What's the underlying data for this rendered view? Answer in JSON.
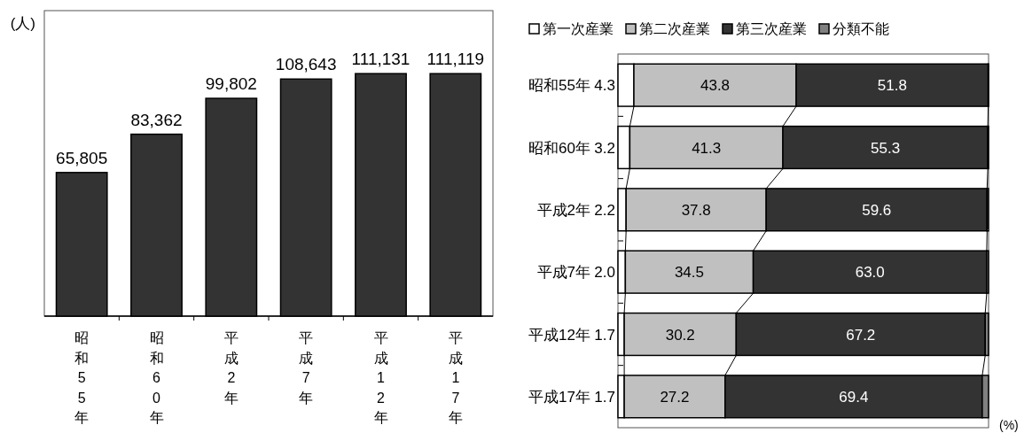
{
  "chart_data": [
    {
      "type": "bar",
      "ylabel": "(人)",
      "categories": [
        "昭和55年",
        "昭和60年",
        "平成2年",
        "平成7年",
        "平成12年",
        "平成17年"
      ],
      "values": [
        65805,
        83362,
        99802,
        108643,
        111131,
        111119
      ],
      "value_labels": [
        "65,805",
        "83,362",
        "99,802",
        "108,643",
        "111,131",
        "111,119"
      ],
      "color": "#333333",
      "ylim": [
        0,
        140000
      ],
      "tick_labels": "x"
    },
    {
      "type": "bar",
      "orientation": "horizontal",
      "stacked": true,
      "xlabel": "(%)",
      "categories": [
        "昭和55年",
        "昭和60年",
        "平成2年",
        "平成7年",
        "平成12年",
        "平成17年"
      ],
      "xlim": [
        0,
        100
      ],
      "legend": "top",
      "tick_labels": "y",
      "series": [
        {
          "name": "第一次産業",
          "color": "#ffffff",
          "values": [
            4.3,
            3.2,
            2.2,
            2.0,
            1.7,
            1.7
          ],
          "value_labels": [
            "4.3",
            "3.2",
            "2.2",
            "2.0",
            "1.7",
            "1.7"
          ]
        },
        {
          "name": "第二次産業",
          "color": "#c0c0c0",
          "values": [
            43.8,
            41.3,
            37.8,
            34.5,
            30.2,
            27.2
          ],
          "value_labels": [
            "43.8",
            "41.3",
            "37.8",
            "34.5",
            "30.2",
            "27.2"
          ]
        },
        {
          "name": "第三次産業",
          "color": "#333333",
          "values": [
            51.8,
            55.3,
            59.6,
            63.0,
            67.2,
            69.4
          ],
          "value_labels": [
            "51.8",
            "55.3",
            "59.6",
            "63.0",
            "67.2",
            "69.4"
          ]
        },
        {
          "name": "分類不能",
          "color": "#808080",
          "values": [
            0.1,
            0.2,
            0.4,
            0.5,
            0.9,
            1.7
          ],
          "value_labels": [
            null,
            null,
            null,
            null,
            null,
            null
          ]
        }
      ]
    }
  ]
}
